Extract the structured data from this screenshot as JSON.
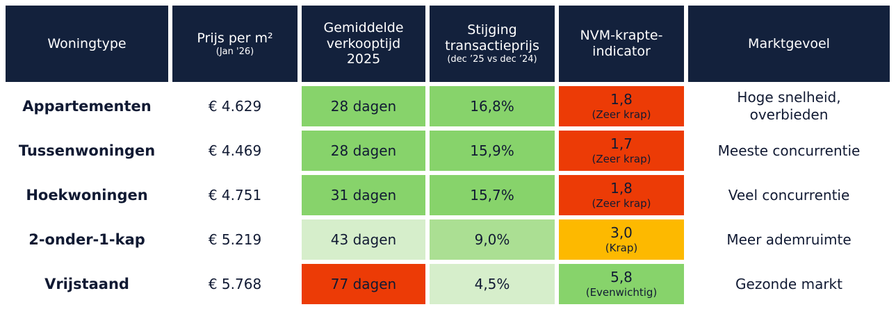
{
  "header": [
    {
      "lines": [
        "Woningtype"
      ]
    },
    {
      "lines": [
        "Prijs per m²"
      ],
      "sub": "(Jan '26)"
    },
    {
      "lines": [
        "Gemiddelde",
        "verkooptijd",
        "2025"
      ]
    },
    {
      "lines": [
        "Stijging",
        "transactieprijs"
      ],
      "sub": "(dec ’25 vs dec ’24)"
    },
    {
      "lines": [
        "NVM-krapte-",
        "indicator"
      ]
    },
    {
      "lines": [
        "Marktgevoel"
      ]
    }
  ],
  "rows": [
    {
      "type": "Appartementen",
      "price": "€ 4.629",
      "time": {
        "text": "28 dagen",
        "color": "#87d36b"
      },
      "rise": {
        "text": "16,8%",
        "color": "#87d36b"
      },
      "index": {
        "text": "1,8",
        "label": "(Zeer krap)",
        "color": "#ec3b06"
      },
      "feeling": [
        "Hoge snelheid,",
        "overbieden"
      ]
    },
    {
      "type": "Tussenwoningen",
      "price": "€ 4.469",
      "time": {
        "text": "28 dagen",
        "color": "#87d36b"
      },
      "rise": {
        "text": "15,9%",
        "color": "#87d36b"
      },
      "index": {
        "text": "1,7",
        "label": "(Zeer krap)",
        "color": "#ec3b06"
      },
      "feeling": [
        "Meeste concurrentie"
      ]
    },
    {
      "type": "Hoekwoningen",
      "price": "€ 4.751",
      "time": {
        "text": "31 dagen",
        "color": "#87d36b"
      },
      "rise": {
        "text": "15,7%",
        "color": "#87d36b"
      },
      "index": {
        "text": "1,8",
        "label": "(Zeer krap)",
        "color": "#ec3b06"
      },
      "feeling": [
        "Veel concurrentie"
      ]
    },
    {
      "type": "2-onder-1-kap",
      "price": "€ 5.219",
      "time": {
        "text": "43 dagen",
        "color": "#d6eecb"
      },
      "rise": {
        "text": "9,0%",
        "color": "#abdf93"
      },
      "index": {
        "text": "3,0",
        "label": "(Krap)",
        "color": "#fdb900"
      },
      "feeling": [
        "Meer ademruimte"
      ]
    },
    {
      "type": "Vrijstaand",
      "price": "€ 5.768",
      "time": {
        "text": "77 dagen",
        "color": "#ec3b06"
      },
      "rise": {
        "text": "4,5%",
        "color": "#d6eecb"
      },
      "index": {
        "text": "5,8",
        "label": "(Evenwichtig)",
        "color": "#87d36b"
      },
      "feeling": [
        "Gezonde markt"
      ]
    }
  ]
}
